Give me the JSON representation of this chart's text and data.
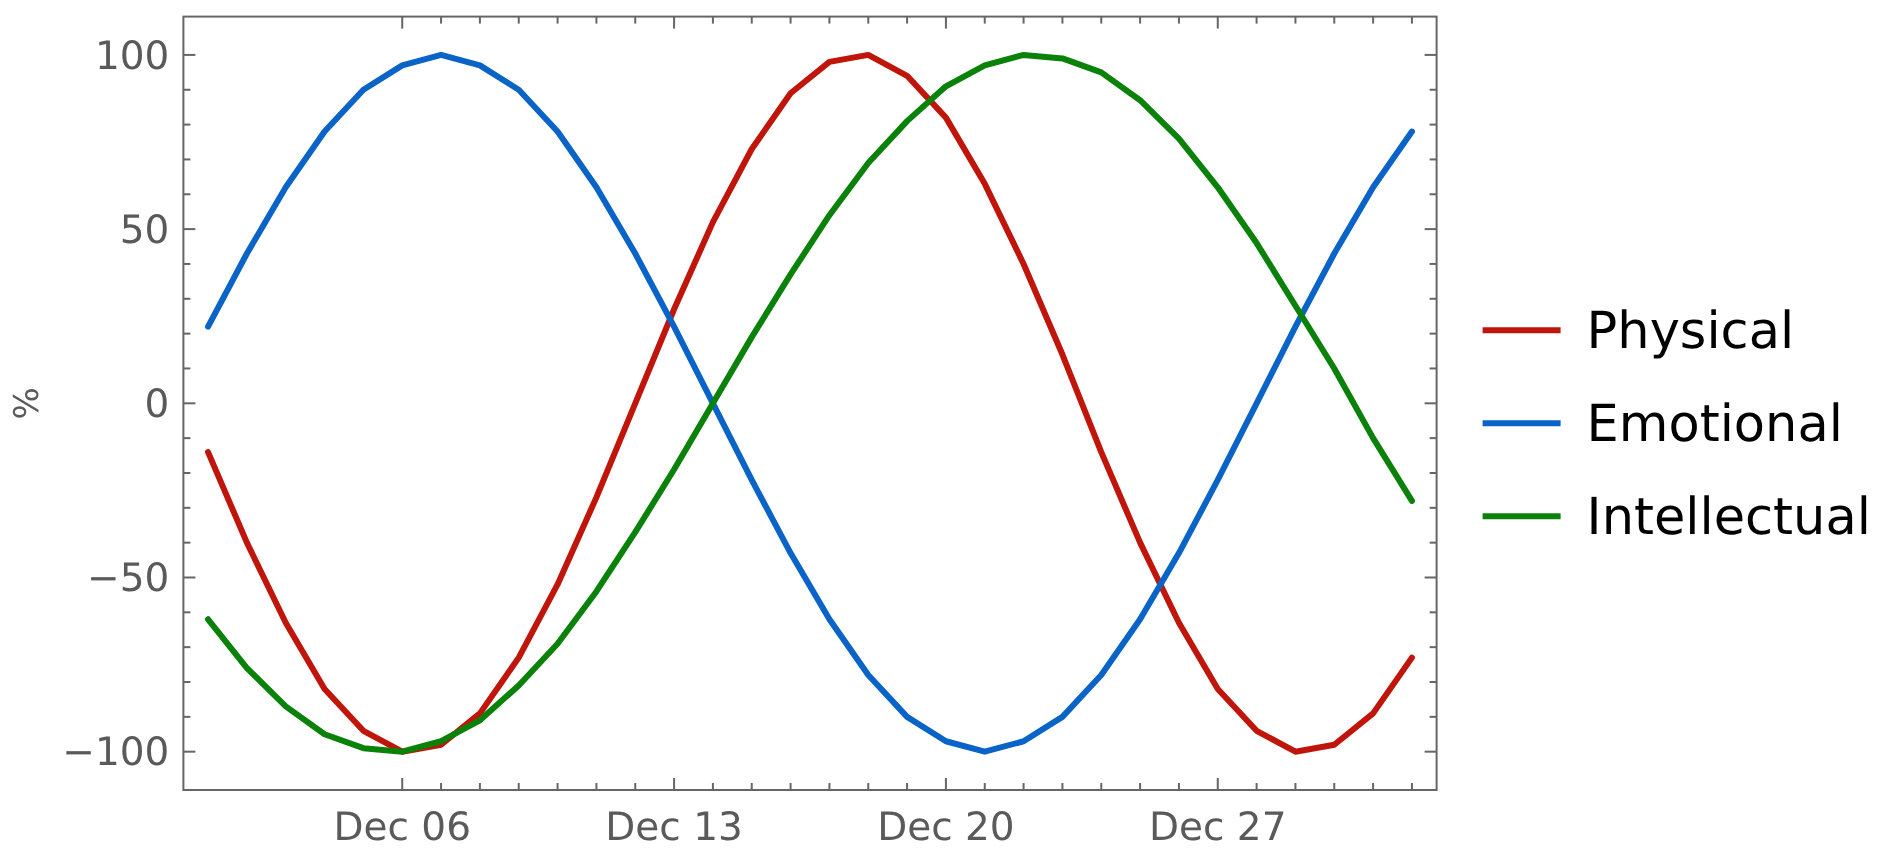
{
  "chart_data": {
    "type": "line",
    "ylabel": "%",
    "categories": [
      null,
      null,
      null,
      null,
      null,
      "Dec 06",
      null,
      null,
      null,
      null,
      null,
      null,
      "Dec 13",
      null,
      null,
      null,
      null,
      null,
      null,
      "Dec 20",
      null,
      null,
      null,
      null,
      null,
      null,
      "Dec 27",
      null,
      null,
      null,
      null,
      null
    ],
    "series": [
      {
        "name": "Physical",
        "color": "#c0150a",
        "values": [
          -14,
          -40,
          -63,
          -82,
          -94,
          -100,
          -98,
          -89,
          -73,
          -52,
          -27,
          0,
          27,
          52,
          73,
          89,
          98,
          100,
          94,
          82,
          63,
          40,
          14,
          -14,
          -40,
          -63,
          -82,
          -94,
          -100,
          -98,
          -89,
          -73
        ]
      },
      {
        "name": "Emotional",
        "color": "#0a64c8",
        "values": [
          22,
          43,
          62,
          78,
          90,
          97,
          100,
          97,
          90,
          78,
          62,
          43,
          22,
          0,
          -22,
          -43,
          -62,
          -78,
          -90,
          -97,
          -100,
          -97,
          -90,
          -78,
          -62,
          -43,
          -22,
          0,
          22,
          43,
          62,
          78
        ]
      },
      {
        "name": "Intellectual",
        "color": "#0a820a",
        "values": [
          -62,
          -76,
          -87,
          -95,
          -99,
          -100,
          -97,
          -91,
          -81,
          -69,
          -54,
          -37,
          -19,
          0,
          19,
          37,
          54,
          69,
          81,
          91,
          97,
          100,
          99,
          95,
          87,
          76,
          62,
          46,
          28,
          10,
          -10,
          -28
        ]
      }
    ],
    "ylim": [
      -111,
      111
    ],
    "yticks": [
      {
        "value": -100,
        "label": "−100"
      },
      {
        "value": -90,
        "label": null
      },
      {
        "value": -80,
        "label": null
      },
      {
        "value": -70,
        "label": null
      },
      {
        "value": -60,
        "label": null
      },
      {
        "value": -50,
        "label": "−50"
      },
      {
        "value": -40,
        "label": null
      },
      {
        "value": -30,
        "label": null
      },
      {
        "value": -20,
        "label": null
      },
      {
        "value": -10,
        "label": null
      },
      0,
      {
        "value": 10,
        "label": null
      },
      {
        "value": 20,
        "label": null
      },
      {
        "value": 30,
        "label": null
      },
      {
        "value": 40,
        "label": null
      },
      50,
      {
        "value": 60,
        "label": null
      },
      {
        "value": 70,
        "label": null
      },
      {
        "value": 80,
        "label": null
      },
      {
        "value": 90,
        "label": null
      },
      100
    ],
    "legend": "right"
  }
}
